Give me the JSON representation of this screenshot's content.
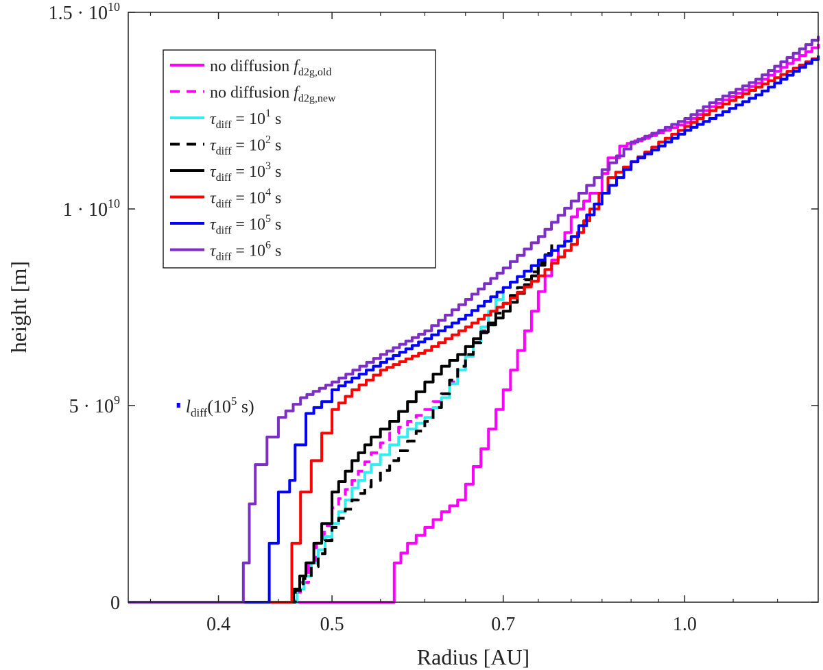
{
  "chart_data": {
    "type": "line",
    "xlabel": "Radius [AU]",
    "ylabel": "height [m]",
    "xscale": "log",
    "xlim": [
      0.335,
      1.3
    ],
    "ylim": [
      0,
      15000000000.0
    ],
    "xticks": [
      {
        "value": 0.4,
        "label": "0.4"
      },
      {
        "value": 0.5,
        "label": "0.5"
      },
      {
        "value": 0.7,
        "label": "0.7"
      },
      {
        "value": 1.0,
        "label": "1.0"
      }
    ],
    "yticks": [
      {
        "value": 0,
        "label": "0"
      },
      {
        "value": 5000000000.0,
        "label_base": "5 · 10",
        "label_exp": "9"
      },
      {
        "value": 10000000000.0,
        "label_base": "1 · 10",
        "label_exp": "10"
      },
      {
        "value": 15000000000.0,
        "label_base": "1.5 · 10",
        "label_exp": "10"
      }
    ],
    "legend_position": "top-left",
    "series": [
      {
        "name": "no diffusion f_d2g,old",
        "main": "no diffusion ",
        "var": "f",
        "sub": "d2g,old",
        "color": "#ff00ff",
        "dash": "solid",
        "points": [
          [
            0.335,
            0
          ],
          [
            0.56,
            0
          ],
          [
            0.565,
            1000000000.0
          ],
          [
            0.58,
            1500000000.0
          ],
          [
            0.6,
            1900000000.0
          ],
          [
            0.62,
            2300000000.0
          ],
          [
            0.64,
            2600000000.0
          ],
          [
            0.65,
            3000000000.0
          ],
          [
            0.67,
            3900000000.0
          ],
          [
            0.69,
            4900000000.0
          ],
          [
            0.71,
            5900000000.0
          ],
          [
            0.73,
            6900000000.0
          ],
          [
            0.75,
            7900000000.0
          ],
          [
            0.77,
            8700000000.0
          ],
          [
            0.79,
            9400000000.0
          ],
          [
            0.8,
            9800000000.0
          ],
          [
            0.83,
            10400000000.0
          ],
          [
            0.85,
            10900000000.0
          ],
          [
            0.86,
            11300000000.0
          ],
          [
            0.88,
            11600000000.0
          ],
          [
            0.92,
            11800000000.0
          ],
          [
            1.0,
            12200000000.0
          ],
          [
            1.05,
            12600000000.0
          ],
          [
            1.15,
            13200000000.0
          ],
          [
            1.3,
            14200000000.0
          ]
        ]
      },
      {
        "name": "no diffusion f_d2g,new",
        "main": "no diffusion ",
        "var": "f",
        "sub": "d2g,new",
        "color": "#ff00ff",
        "dash": "dashed",
        "points": [
          [
            0.458,
            0
          ],
          [
            0.47,
            500000000.0
          ],
          [
            0.485,
            1500000000.0
          ],
          [
            0.5,
            2400000000.0
          ],
          [
            0.52,
            3100000000.0
          ],
          [
            0.54,
            3800000000.0
          ],
          [
            0.56,
            4300000000.0
          ],
          [
            0.58,
            4600000000.0
          ],
          [
            0.6,
            4900000000.0
          ],
          [
            0.62,
            5300000000.0
          ],
          [
            0.64,
            5900000000.0
          ],
          [
            0.66,
            6600000000.0
          ],
          [
            0.68,
            7200000000.0
          ]
        ]
      },
      {
        "name": "tau_diff = 10^1 s",
        "main": "τ",
        "sub": "diff",
        "eq": " = 10",
        "exp": "1",
        "unit": " s",
        "color": "#33eeee",
        "dash": "solid",
        "points": [
          [
            0.46,
            0
          ],
          [
            0.48,
            1000000000.0
          ],
          [
            0.5,
            2000000000.0
          ],
          [
            0.52,
            2900000000.0
          ],
          [
            0.54,
            3500000000.0
          ],
          [
            0.56,
            4000000000.0
          ],
          [
            0.58,
            4400000000.0
          ],
          [
            0.6,
            4700000000.0
          ],
          [
            0.62,
            5200000000.0
          ],
          [
            0.64,
            5900000000.0
          ],
          [
            0.66,
            6600000000.0
          ],
          [
            0.68,
            7400000000.0
          ],
          [
            0.7,
            8000000000.0
          ]
        ]
      },
      {
        "name": "tau_diff = 10^2 s",
        "main": "τ",
        "sub": "diff",
        "eq": " = 10",
        "exp": "2",
        "unit": " s",
        "color": "#000000",
        "dash": "dashed",
        "points": [
          [
            0.458,
            0
          ],
          [
            0.48,
            900000000.0
          ],
          [
            0.5,
            1900000000.0
          ],
          [
            0.52,
            2600000000.0
          ],
          [
            0.54,
            3100000000.0
          ],
          [
            0.56,
            3600000000.0
          ],
          [
            0.58,
            4100000000.0
          ],
          [
            0.6,
            4600000000.0
          ],
          [
            0.62,
            5300000000.0
          ],
          [
            0.64,
            6000000000.0
          ],
          [
            0.66,
            6600000000.0
          ],
          [
            0.7,
            7600000000.0
          ],
          [
            0.74,
            8400000000.0
          ],
          [
            0.77,
            9100000000.0
          ]
        ]
      },
      {
        "name": "tau_diff = 10^3 s",
        "main": "τ",
        "sub": "diff",
        "eq": " = 10",
        "exp": "3",
        "unit": " s",
        "color": "#000000",
        "dash": "solid",
        "points": [
          [
            0.458,
            0
          ],
          [
            0.475,
            1000000000.0
          ],
          [
            0.49,
            2000000000.0
          ],
          [
            0.5,
            2800000000.0
          ],
          [
            0.52,
            3600000000.0
          ],
          [
            0.54,
            4200000000.0
          ],
          [
            0.56,
            4600000000.0
          ],
          [
            0.58,
            5100000000.0
          ],
          [
            0.6,
            5600000000.0
          ],
          [
            0.62,
            6000000000.0
          ],
          [
            0.64,
            6300000000.0
          ],
          [
            0.66,
            6700000000.0
          ],
          [
            0.7,
            7400000000.0
          ],
          [
            0.74,
            8300000000.0
          ],
          [
            0.77,
            9100000000.0
          ]
        ]
      },
      {
        "name": "tau_diff = 10^4 s",
        "main": "τ",
        "sub": "diff",
        "eq": " = 10",
        "exp": "4",
        "unit": " s",
        "color": "#ff0000",
        "dash": "solid",
        "points": [
          [
            0.335,
            0
          ],
          [
            0.456,
            0
          ],
          [
            0.462,
            1500000000.0
          ],
          [
            0.47,
            2800000000.0
          ],
          [
            0.48,
            3600000000.0
          ],
          [
            0.49,
            4300000000.0
          ],
          [
            0.5,
            4900000000.0
          ],
          [
            0.52,
            5400000000.0
          ],
          [
            0.55,
            5900000000.0
          ],
          [
            0.6,
            6400000000.0
          ],
          [
            0.65,
            7000000000.0
          ],
          [
            0.7,
            7600000000.0
          ],
          [
            0.75,
            8300000000.0
          ],
          [
            0.8,
            9100000000.0
          ],
          [
            0.83,
            10000000000.0
          ],
          [
            0.86,
            10800000000.0
          ],
          [
            0.9,
            11200000000.0
          ],
          [
            0.95,
            11700000000.0
          ],
          [
            1.0,
            12100000000.0
          ],
          [
            1.05,
            12500000000.0
          ],
          [
            1.15,
            13100000000.0
          ],
          [
            1.3,
            13900000000.0
          ]
        ]
      },
      {
        "name": "tau_diff = 10^5 s",
        "main": "τ",
        "sub": "diff",
        "eq": " = 10",
        "exp": "5",
        "unit": " s",
        "color": "#0000ff",
        "dash": "solid",
        "points": [
          [
            0.335,
            0
          ],
          [
            0.44,
            0
          ],
          [
            0.442,
            1500000000.0
          ],
          [
            0.45,
            2800000000.0
          ],
          [
            0.46,
            3100000000.0
          ],
          [
            0.465,
            4000000000.0
          ],
          [
            0.475,
            4800000000.0
          ],
          [
            0.49,
            5100000000.0
          ],
          [
            0.5,
            5400000000.0
          ],
          [
            0.52,
            5700000000.0
          ],
          [
            0.55,
            6100000000.0
          ],
          [
            0.6,
            6700000000.0
          ],
          [
            0.65,
            7300000000.0
          ],
          [
            0.7,
            8000000000.0
          ],
          [
            0.75,
            8700000000.0
          ],
          [
            0.8,
            9300000000.0
          ],
          [
            0.85,
            10400000000.0
          ],
          [
            0.9,
            11200000000.0
          ],
          [
            0.95,
            11600000000.0
          ],
          [
            1.0,
            12000000000.0
          ],
          [
            1.05,
            12300000000.0
          ],
          [
            1.15,
            12900000000.0
          ],
          [
            1.3,
            13900000000.0
          ]
        ]
      },
      {
        "name": "tau_diff = 10^6 s",
        "main": "τ",
        "sub": "diff",
        "eq": " = 10",
        "exp": "6",
        "unit": " s",
        "color": "#7d2ec4",
        "dash": "solid",
        "points": [
          [
            0.335,
            0
          ],
          [
            0.418,
            0
          ],
          [
            0.42,
            1000000000.0
          ],
          [
            0.425,
            2500000000.0
          ],
          [
            0.43,
            3500000000.0
          ],
          [
            0.44,
            4200000000.0
          ],
          [
            0.45,
            4700000000.0
          ],
          [
            0.47,
            5200000000.0
          ],
          [
            0.5,
            5600000000.0
          ],
          [
            0.55,
            6300000000.0
          ],
          [
            0.6,
            6900000000.0
          ],
          [
            0.65,
            7700000000.0
          ],
          [
            0.7,
            8500000000.0
          ],
          [
            0.75,
            9300000000.0
          ],
          [
            0.8,
            10200000000.0
          ],
          [
            0.85,
            11000000000.0
          ],
          [
            0.9,
            11700000000.0
          ],
          [
            0.95,
            12000000000.0
          ],
          [
            1.0,
            12300000000.0
          ],
          [
            1.05,
            12700000000.0
          ],
          [
            1.15,
            13300000000.0
          ],
          [
            1.3,
            14400000000.0
          ]
        ]
      }
    ],
    "annotation": {
      "main": "l",
      "sub": "diff",
      "text": "(10",
      "exp": "5",
      "tail": " s)",
      "x": 0.37,
      "y": 5000000000.0,
      "color": "#0000ff"
    }
  }
}
